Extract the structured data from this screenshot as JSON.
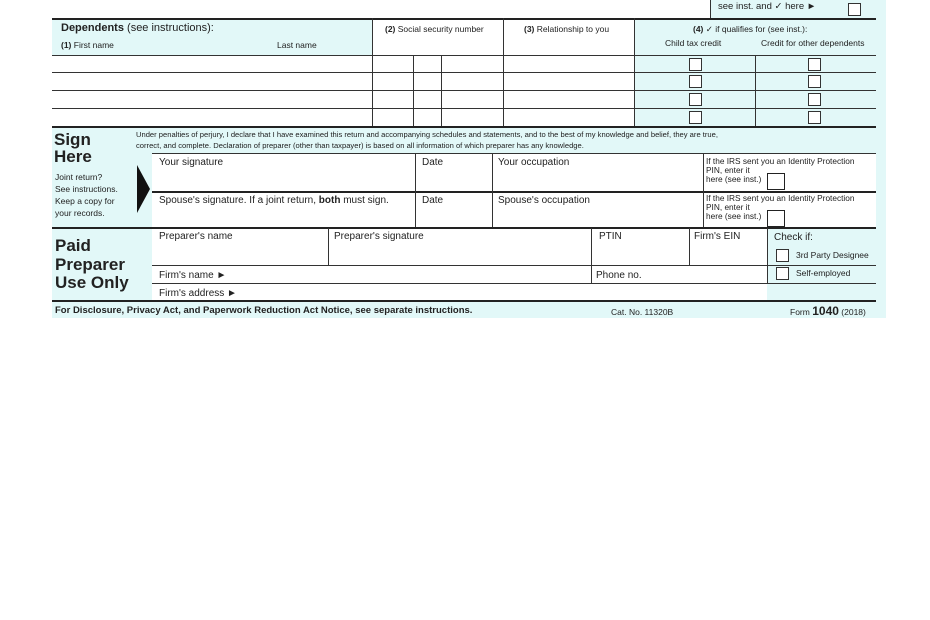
{
  "top_box": {
    "text": "see inst. and ✓ here ►"
  },
  "dependents": {
    "title": "Dependents",
    "title_note": "(see instructions):",
    "col1_num": "(1)",
    "col1_first": "First name",
    "col1_last": "Last name",
    "col2_num": "(2)",
    "col2": "Social security number",
    "col3_num": "(3)",
    "col3": "Relationship to you",
    "col4_num": "(4)",
    "col4": "✓ if qualifies for (see inst.):",
    "col4a": "Child tax credit",
    "col4b": "Credit for other dependents",
    "rows": 4
  },
  "sign": {
    "title1": "Sign",
    "title2": "Here",
    "note": [
      "Joint return?",
      "See instructions.",
      "Keep a copy for",
      "your records."
    ],
    "declaration1": "Under penalties of perjury, I declare that I have examined this return and accompanying schedules and statements, and to the best of my knowledge and belief, they are true,",
    "declaration2": "correct, and complete. Declaration of preparer (other than taxpayer) is based on all information of which preparer has any knowledge.",
    "your_signature": "Your signature",
    "date": "Date",
    "your_occupation": "Your occupation",
    "spouse_signature_a": "Spouse's signature. If a joint return, ",
    "spouse_signature_b": "both",
    "spouse_signature_c": " must sign.",
    "spouse_occupation": "Spouse's occupation",
    "pin_line1": "If the IRS sent you an Identity Protection",
    "pin_line2": "PIN, enter it",
    "pin_line3": "here (see inst.)"
  },
  "preparer": {
    "title1": "Paid",
    "title2": "Preparer",
    "title3": "Use Only",
    "name": "Preparer's name",
    "signature": "Preparer's signature",
    "ptin": "PTIN",
    "ein": "Firm's EIN",
    "check_if": "Check if:",
    "third_party": "3rd Party Designee",
    "self_employed": "Self-employed",
    "firm_name": "Firm's name ►",
    "phone": "Phone no.",
    "firm_address": "Firm's address ►"
  },
  "footer": {
    "notice": "For Disclosure, Privacy Act, and Paperwork Reduction Act Notice, see separate instructions.",
    "cat": "Cat. No. 11320B",
    "form_label": "Form",
    "form_number": "1040",
    "year": "(2018)"
  },
  "colors": {
    "form_tint": "#e2f8f8"
  }
}
